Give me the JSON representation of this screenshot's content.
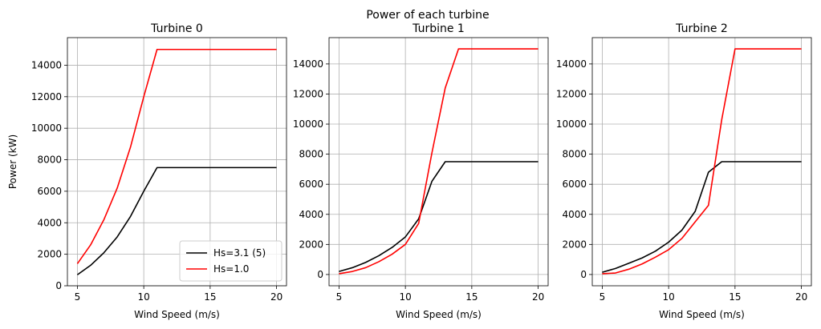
{
  "chart_data": {
    "type": "line",
    "suptitle": "Power of each turbine",
    "panels": [
      {
        "title": "Turbine 0",
        "xlabel": "Wind Speed (m/s)",
        "ylabel": "Power (kW)",
        "xlim": [
          4.25,
          20.75
        ],
        "ylim": [
          0,
          15750
        ],
        "xticks": [
          5,
          10,
          15,
          20
        ],
        "yticks": [
          0,
          2000,
          4000,
          6000,
          8000,
          10000,
          12000,
          14000
        ],
        "grid": true,
        "legend": "lower-right",
        "x": [
          5,
          6,
          7,
          8,
          9,
          10,
          11,
          12,
          13,
          14,
          15,
          16,
          17,
          18,
          19,
          20
        ],
        "series": [
          {
            "name": "Hs=3.1 (5)",
            "color": "#000000",
            "values": [
              700,
              1300,
              2100,
              3100,
              4400,
              6000,
              7500,
              7500,
              7500,
              7500,
              7500,
              7500,
              7500,
              7500,
              7500,
              7500
            ]
          },
          {
            "name": "Hs=1.0",
            "color": "#ff0000",
            "values": [
              1400,
              2600,
              4200,
              6200,
              8800,
              12000,
              15000,
              15000,
              15000,
              15000,
              15000,
              15000,
              15000,
              15000,
              15000,
              15000
            ]
          }
        ]
      },
      {
        "title": "Turbine 1",
        "xlabel": "Wind Speed (m/s)",
        "ylabel": "",
        "xlim": [
          4.25,
          20.75
        ],
        "ylim": [
          -750,
          15750
        ],
        "xticks": [
          5,
          10,
          15,
          20
        ],
        "yticks": [
          0,
          2000,
          4000,
          6000,
          8000,
          10000,
          12000,
          14000
        ],
        "grid": true,
        "x": [
          5,
          6,
          7,
          8,
          9,
          10,
          11,
          12,
          13,
          14,
          15,
          16,
          17,
          18,
          19,
          20
        ],
        "series": [
          {
            "name": "Hs=3.1 (5)",
            "color": "#000000",
            "values": [
              200,
              450,
              800,
              1250,
              1800,
              2500,
              3700,
              6200,
              7500,
              7500,
              7500,
              7500,
              7500,
              7500,
              7500,
              7500
            ]
          },
          {
            "name": "Hs=1.0",
            "color": "#ff0000",
            "values": [
              50,
              200,
              450,
              850,
              1350,
              2000,
              3400,
              8100,
              12400,
              15000,
              15000,
              15000,
              15000,
              15000,
              15000,
              15000
            ]
          }
        ]
      },
      {
        "title": "Turbine 2",
        "xlabel": "Wind Speed (m/s)",
        "ylabel": "",
        "xlim": [
          4.25,
          20.75
        ],
        "ylim": [
          -750,
          15750
        ],
        "xticks": [
          5,
          10,
          15,
          20
        ],
        "yticks": [
          0,
          2000,
          4000,
          6000,
          8000,
          10000,
          12000,
          14000
        ],
        "grid": true,
        "x": [
          5,
          6,
          7,
          8,
          9,
          10,
          11,
          12,
          13,
          14,
          15,
          16,
          17,
          18,
          19,
          20
        ],
        "series": [
          {
            "name": "Hs=3.1 (5)",
            "color": "#000000",
            "values": [
              150,
              400,
              750,
              1100,
              1550,
              2150,
              2950,
              4200,
              6800,
              7500,
              7500,
              7500,
              7500,
              7500,
              7500,
              7500
            ]
          },
          {
            "name": "Hs=1.0",
            "color": "#ff0000",
            "values": [
              50,
              100,
              350,
              700,
              1150,
              1650,
              2400,
              3500,
              4600,
              10300,
              15000,
              15000,
              15000,
              15000,
              15000,
              15000
            ]
          }
        ]
      }
    ]
  }
}
